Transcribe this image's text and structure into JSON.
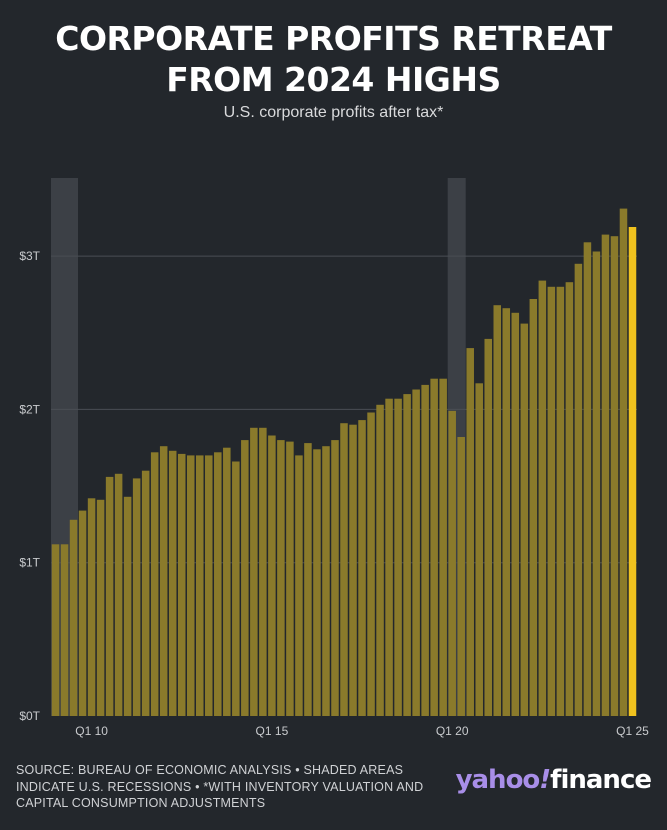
{
  "title_line1": "CORPORATE PROFITS RETREAT",
  "title_line2": "FROM 2024 HIGHS",
  "subtitle": "U.S. corporate profits after tax*",
  "source_text": "SOURCE: BUREAU OF ECONOMIC ANALYSIS • SHADED AREAS INDICATE U.S. RECESSIONS • *WITH INVENTORY VALUATION AND CAPITAL CONSUMPTION ADJUSTMENTS",
  "logo": {
    "yahoo": "yahoo",
    "bang": "!",
    "finance": "finance"
  },
  "colors": {
    "background": "#23272c",
    "bar": "#8a7a2b",
    "bar_latest": "#f0c21e",
    "recession_shade": "#3c4046",
    "grid": "#4a4e54"
  },
  "chart_data": {
    "type": "bar",
    "x_tick_labels": [
      {
        "index": 4,
        "label": "Q1 10"
      },
      {
        "index": 24,
        "label": "Q1 15"
      },
      {
        "index": 44,
        "label": "Q1 20"
      },
      {
        "index": 64,
        "label": "Q1 25"
      }
    ],
    "y_ticks": [
      {
        "value": 0,
        "label": "$0T"
      },
      {
        "value": 1,
        "label": "$1T"
      },
      {
        "value": 2,
        "label": "$2T"
      },
      {
        "value": 3,
        "label": "$3T"
      }
    ],
    "ylim": [
      0,
      3.5
    ],
    "grid": true,
    "recessions": [
      {
        "start_index": 0,
        "end_index": 2
      },
      {
        "start_index": 44,
        "end_index": 45
      }
    ],
    "highlight_last": true,
    "values": [
      1.12,
      1.12,
      1.28,
      1.34,
      1.42,
      1.41,
      1.56,
      1.58,
      1.43,
      1.55,
      1.6,
      1.72,
      1.76,
      1.73,
      1.71,
      1.7,
      1.7,
      1.7,
      1.72,
      1.75,
      1.66,
      1.8,
      1.88,
      1.88,
      1.83,
      1.8,
      1.79,
      1.7,
      1.78,
      1.74,
      1.76,
      1.8,
      1.91,
      1.9,
      1.93,
      1.98,
      2.03,
      2.07,
      2.07,
      2.1,
      2.13,
      2.16,
      2.2,
      2.2,
      1.99,
      1.82,
      2.4,
      2.17,
      2.46,
      2.68,
      2.66,
      2.63,
      2.56,
      2.72,
      2.84,
      2.8,
      2.8,
      2.83,
      2.95,
      3.09,
      3.03,
      3.14,
      3.13,
      3.31,
      3.19
    ]
  }
}
